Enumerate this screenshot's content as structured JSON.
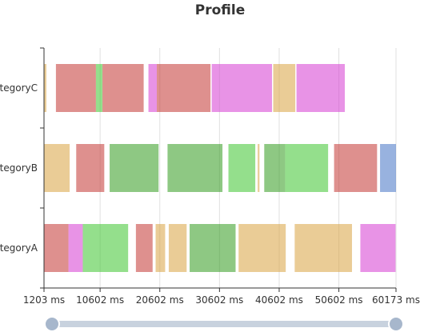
{
  "chart_data": {
    "type": "profile",
    "title": "Profile",
    "categories": [
      "categoryA",
      "categoryB",
      "categoryC"
    ],
    "x_ticks": [
      "1203 ms",
      "10602 ms",
      "20602 ms",
      "30602 ms",
      "40602 ms",
      "50602 ms",
      "60173 ms"
    ],
    "xlim": [
      1203,
      60173
    ],
    "datazoom": {
      "start": 0,
      "end": 100
    },
    "grid": true,
    "type_colors": {
      "red": "#c23531",
      "pink": "#d53ad2",
      "green": "#3cc42d",
      "darkgreen": "#319a1e",
      "tan": "#d8a240",
      "blue": "#4472c4"
    },
    "segments": [
      {
        "category": "categoryA",
        "type": "red",
        "start": 1203,
        "end": 5300
      },
      {
        "category": "categoryA",
        "type": "pink",
        "start": 5300,
        "end": 7700
      },
      {
        "category": "categoryA",
        "type": "green",
        "start": 7700,
        "end": 15300
      },
      {
        "category": "categoryA",
        "type": "red",
        "start": 16600,
        "end": 19400
      },
      {
        "category": "categoryA",
        "type": "tan",
        "start": 19900,
        "end": 21500
      },
      {
        "category": "categoryA",
        "type": "tan",
        "start": 22100,
        "end": 25100
      },
      {
        "category": "categoryA",
        "type": "darkgreen",
        "start": 25600,
        "end": 33300
      },
      {
        "category": "categoryA",
        "type": "tan",
        "start": 33800,
        "end": 41700
      },
      {
        "category": "categoryA",
        "type": "tan",
        "start": 43200,
        "end": 52800
      },
      {
        "category": "categoryA",
        "type": "pink",
        "start": 54200,
        "end": 60100
      },
      {
        "category": "categoryB",
        "type": "tan",
        "start": 1203,
        "end": 5500
      },
      {
        "category": "categoryB",
        "type": "red",
        "start": 6600,
        "end": 11300
      },
      {
        "category": "categoryB",
        "type": "darkgreen",
        "start": 12200,
        "end": 20400
      },
      {
        "category": "categoryB",
        "type": "darkgreen",
        "start": 21900,
        "end": 31100
      },
      {
        "category": "categoryB",
        "type": "green",
        "start": 32100,
        "end": 36600
      },
      {
        "category": "categoryB",
        "type": "tan",
        "start": 37000,
        "end": 37300
      },
      {
        "category": "categoryB",
        "type": "darkgreen",
        "start": 38100,
        "end": 41600
      },
      {
        "category": "categoryB",
        "type": "green",
        "start": 41600,
        "end": 48800
      },
      {
        "category": "categoryB",
        "type": "red",
        "start": 49800,
        "end": 57000
      },
      {
        "category": "categoryB",
        "type": "blue",
        "start": 57500,
        "end": 60173
      },
      {
        "category": "categoryC",
        "type": "tan",
        "start": 1203,
        "end": 1600
      },
      {
        "category": "categoryC",
        "type": "red",
        "start": 3200,
        "end": 9900
      },
      {
        "category": "categoryC",
        "type": "green",
        "start": 9900,
        "end": 11000
      },
      {
        "category": "categoryC",
        "type": "red",
        "start": 11000,
        "end": 17900
      },
      {
        "category": "categoryC",
        "type": "pink",
        "start": 18700,
        "end": 20100
      },
      {
        "category": "categoryC",
        "type": "red",
        "start": 20100,
        "end": 29100
      },
      {
        "category": "categoryC",
        "type": "pink",
        "start": 29300,
        "end": 30600
      },
      {
        "category": "categoryC",
        "type": "pink",
        "start": 30600,
        "end": 39400
      },
      {
        "category": "categoryC",
        "type": "tan",
        "start": 39600,
        "end": 43300
      },
      {
        "category": "categoryC",
        "type": "pink",
        "start": 43500,
        "end": 51600
      }
    ]
  }
}
